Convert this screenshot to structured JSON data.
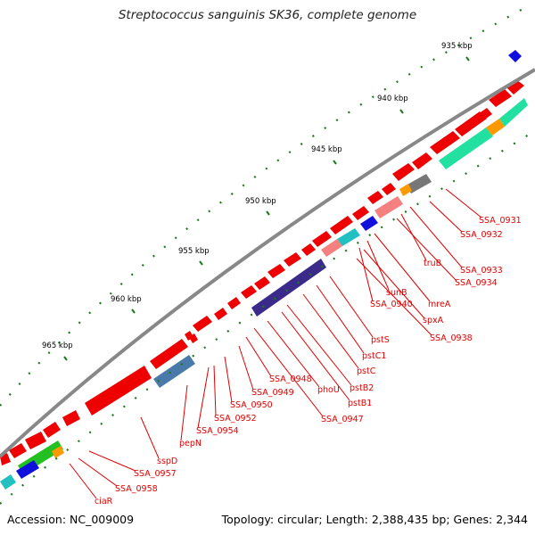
{
  "title": "Streptococcus sanguinis SK36, complete genome",
  "accession": "Accession: NC_009009",
  "summary": "Topology: circular; Length: 2,388,435 bp; Genes: 2,344",
  "ticks": [
    "935 kbp",
    "940 kbp",
    "945 kbp",
    "950 kbp",
    "955 kbp",
    "960 kbp",
    "965 kbp"
  ],
  "gene_labels": [
    "SSA_0931",
    "SSA_0932",
    "truB",
    "SSA_0933",
    "SSA_0934",
    "mreA",
    "sunB",
    "SSA_0940",
    "spxA",
    "SSA_0938",
    "pstS",
    "pstC1",
    "pstC",
    "pstB2",
    "pstB1",
    "phoU",
    "SSA_0947",
    "SSA_0948",
    "SSA_0949",
    "SSA_0950",
    "SSA_0952",
    "SSA_0954",
    "pepN",
    "sspD",
    "SSA_0957",
    "SSA_0958",
    "ciaR"
  ],
  "colors": {
    "cds": "#ee0000",
    "backbone": "#888888",
    "label": "#e00000",
    "ticks": "#1a7a1a"
  }
}
